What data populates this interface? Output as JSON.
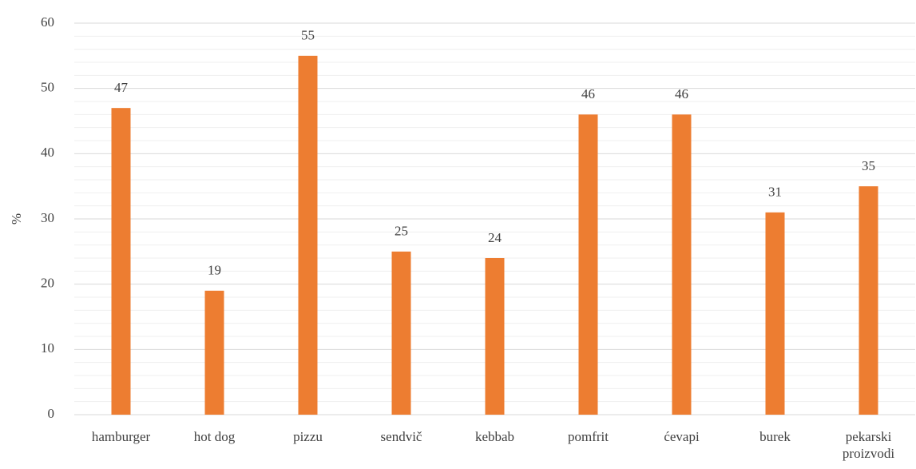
{
  "chart_data": {
    "type": "bar",
    "ylabel": "%",
    "categories": [
      "hamburger",
      "hot dog",
      "pizzu",
      "sendvič",
      "kebbab",
      "pomfrit",
      "ćevapi",
      "burek",
      "pekarski proizvodi"
    ],
    "values": [
      47,
      19,
      55,
      25,
      24,
      46,
      46,
      31,
      35
    ],
    "color": "#ed7d31",
    "ylim": [
      0,
      60
    ],
    "yticks": [
      0,
      10,
      20,
      30,
      40,
      50,
      60
    ],
    "grid": true,
    "minor_grid": true
  }
}
